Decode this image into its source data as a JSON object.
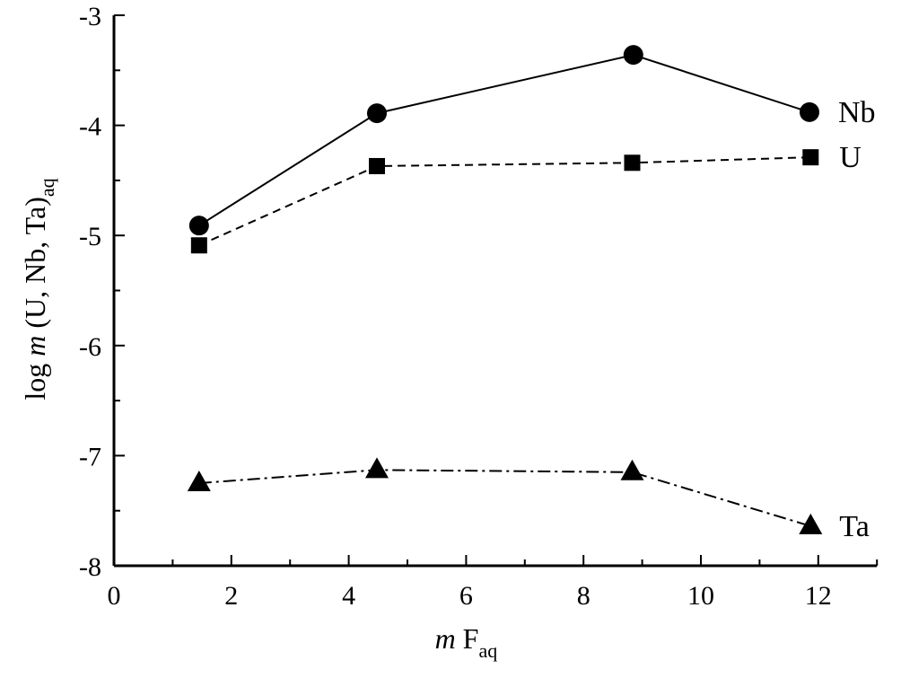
{
  "chart_data": {
    "type": "line",
    "xlabel": {
      "italic": "m",
      "main": "F",
      "sub": "aq"
    },
    "ylabel": {
      "pre": "log ",
      "italic": "m",
      "main": " (U, Nb, Ta)",
      "sub": "aq"
    },
    "xlim": [
      0,
      13
    ],
    "ylim": [
      -8,
      -3
    ],
    "xticks": [
      0,
      2,
      4,
      6,
      8,
      10,
      12
    ],
    "yticks": [
      -3,
      -4,
      -5,
      -6,
      -7,
      -8
    ],
    "grid": false,
    "series": [
      {
        "name": "Nb",
        "marker": "circle",
        "line": "solid",
        "x": [
          1.45,
          4.48,
          8.85,
          11.85
        ],
        "y": [
          -4.91,
          -3.89,
          -3.36,
          -3.88
        ]
      },
      {
        "name": "U",
        "marker": "square",
        "line": "dashed",
        "x": [
          1.45,
          4.48,
          8.83,
          11.87
        ],
        "y": [
          -5.09,
          -4.37,
          -4.34,
          -4.29
        ]
      },
      {
        "name": "Ta",
        "marker": "triangle",
        "line": "dash-dot",
        "x": [
          1.45,
          4.48,
          8.83,
          11.87
        ],
        "y": [
          -7.25,
          -7.13,
          -7.15,
          -7.64
        ]
      }
    ],
    "color": "#000000"
  }
}
